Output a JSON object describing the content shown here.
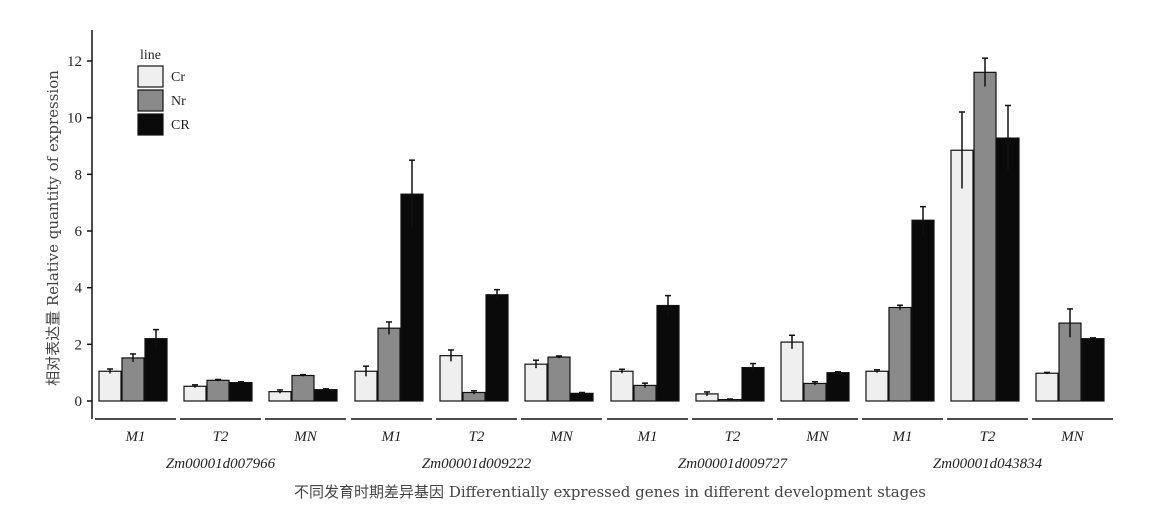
{
  "chart_data": {
    "type": "bar",
    "ylabel": "相对表达量 Relative quantity of expression",
    "xlabel": "不同发育时期差异基因 Differentially expressed genes in different development stages",
    "ylim": [
      0,
      13
    ],
    "yticks": [
      0,
      2,
      4,
      6,
      8,
      10,
      12
    ],
    "legend": {
      "title": "line",
      "position": "top-left"
    },
    "series": [
      {
        "name": "Cr",
        "color": "#efefef"
      },
      {
        "name": "Nr",
        "color": "#8a8a8a"
      },
      {
        "name": "CR",
        "color": "#0a0a0a"
      }
    ],
    "groups": [
      {
        "gene": "Zm00001d007966",
        "stages": [
          {
            "label": "M1",
            "values": [
              1.05,
              1.52,
              2.2
            ],
            "errors": [
              0.08,
              0.14,
              0.32
            ]
          },
          {
            "label": "T2",
            "values": [
              0.52,
              0.73,
              0.65
            ],
            "errors": [
              0.05,
              0.03,
              0.03
            ]
          },
          {
            "label": "MN",
            "values": [
              0.33,
              0.9,
              0.4
            ],
            "errors": [
              0.06,
              0.03,
              0.03
            ]
          }
        ]
      },
      {
        "gene": "Zm00001d009222",
        "stages": [
          {
            "label": "M1",
            "values": [
              1.05,
              2.57,
              7.3
            ],
            "errors": [
              0.18,
              0.22,
              1.2
            ]
          },
          {
            "label": "T2",
            "values": [
              1.6,
              0.3,
              3.75
            ],
            "errors": [
              0.2,
              0.06,
              0.18
            ]
          },
          {
            "label": "MN",
            "values": [
              1.3,
              1.55,
              0.27
            ],
            "errors": [
              0.14,
              0.04,
              0.03
            ]
          }
        ]
      },
      {
        "gene": "Zm00001d009727",
        "stages": [
          {
            "label": "M1",
            "values": [
              1.05,
              0.55,
              3.37
            ],
            "errors": [
              0.07,
              0.08,
              0.35
            ]
          },
          {
            "label": "T2",
            "values": [
              0.25,
              0.05,
              1.18
            ],
            "errors": [
              0.07,
              0.02,
              0.14
            ]
          },
          {
            "label": "MN",
            "values": [
              2.08,
              0.62,
              1.0
            ],
            "errors": [
              0.24,
              0.06,
              0.03
            ]
          }
        ]
      },
      {
        "gene": "Zm00001d043834",
        "stages": [
          {
            "label": "M1",
            "values": [
              1.05,
              3.3,
              6.38
            ],
            "errors": [
              0.05,
              0.08,
              0.48
            ]
          },
          {
            "label": "T2",
            "values": [
              8.85,
              11.6,
              9.28
            ],
            "errors": [
              1.35,
              0.5,
              1.15
            ]
          },
          {
            "label": "MN",
            "values": [
              0.98,
              2.75,
              2.2
            ],
            "errors": [
              0.03,
              0.5,
              0.03
            ]
          }
        ]
      }
    ]
  }
}
